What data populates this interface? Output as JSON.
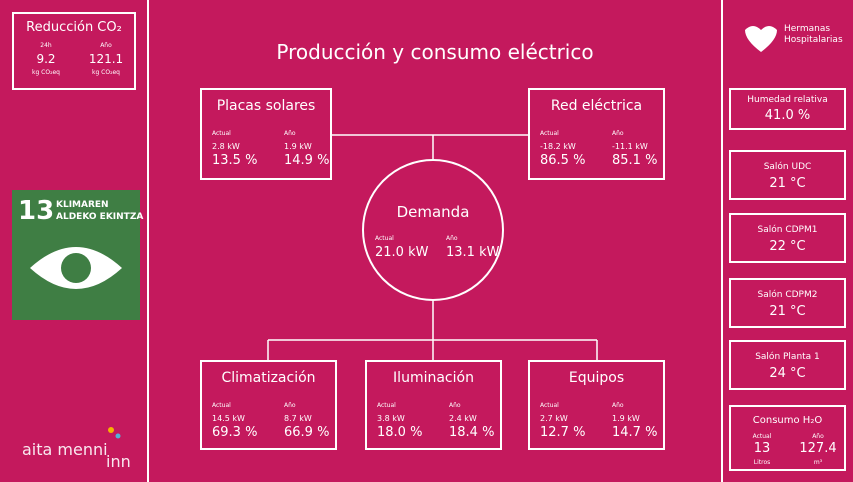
{
  "co2": {
    "title": "Reducción CO₂",
    "items": [
      {
        "label": "24h",
        "value": "9.2",
        "unit": "kg CO₂eq"
      },
      {
        "label": "Año",
        "value": "121.1",
        "unit": "kg CO₂eq"
      }
    ]
  },
  "sdg": {
    "number": "13",
    "line1": "KLIMAREN",
    "line2": "ALDEKO EKINTZA"
  },
  "logo_left": {
    "main": "aita menni",
    "suffix": "inn"
  },
  "title": "Producción y consumo eléctrico",
  "nodes": [
    {
      "name": "Placas solares",
      "actual_label": "Actual",
      "actual_kw": "2.8 kW",
      "year_label": "Año",
      "year_kw": "1.9 kW",
      "actual_pct": "13.5 %",
      "year_pct": "14.9 %"
    },
    {
      "name": "Red eléctrica",
      "actual_label": "Actual",
      "actual_kw": "-18.2 kW",
      "year_label": "Año",
      "year_kw": "-11.1 kW",
      "actual_pct": "86.5 %",
      "year_pct": "85.1 %"
    },
    {
      "name": "Demanda",
      "actual_label": "Actual",
      "actual_kw": "21.0 kW",
      "year_label": "Año",
      "year_kw": "13.1 kW"
    },
    {
      "name": "Climatización",
      "actual_label": "Actual",
      "actual_kw": "14.5 kW",
      "year_label": "Año",
      "year_kw": "8.7 kW",
      "actual_pct": "69.3 %",
      "year_pct": "66.9 %"
    },
    {
      "name": "Iluminación",
      "actual_label": "Actual",
      "actual_kw": "3.8 kW",
      "year_label": "Año",
      "year_kw": "2.4 kW",
      "actual_pct": "18.0 %",
      "year_pct": "18.4 %"
    },
    {
      "name": "Equipos",
      "actual_label": "Actual",
      "actual_kw": "2.7 kW",
      "year_label": "Año",
      "year_kw": "1.9 kW",
      "actual_pct": "12.7 %",
      "year_pct": "14.7 %"
    }
  ],
  "logo_right": {
    "line1": "Hermanas",
    "line2": "Hospitalarias"
  },
  "sensors": [
    {
      "label": "Humedad relativa",
      "value": "41.0 %"
    },
    {
      "label": "Salón UDC",
      "value": "21 °C"
    },
    {
      "label": "Salón CDPM1",
      "value": "22 °C"
    },
    {
      "label": "Salón CDPM2",
      "value": "21 °C"
    },
    {
      "label": "Salón Planta 1",
      "value": "24 °C"
    }
  ],
  "water": {
    "title": "Consumo H₂O",
    "items": [
      {
        "label": "Actual",
        "value": "13",
        "unit": "Litros"
      },
      {
        "label": "Año",
        "value": "127.4",
        "unit": "m³"
      }
    ]
  }
}
